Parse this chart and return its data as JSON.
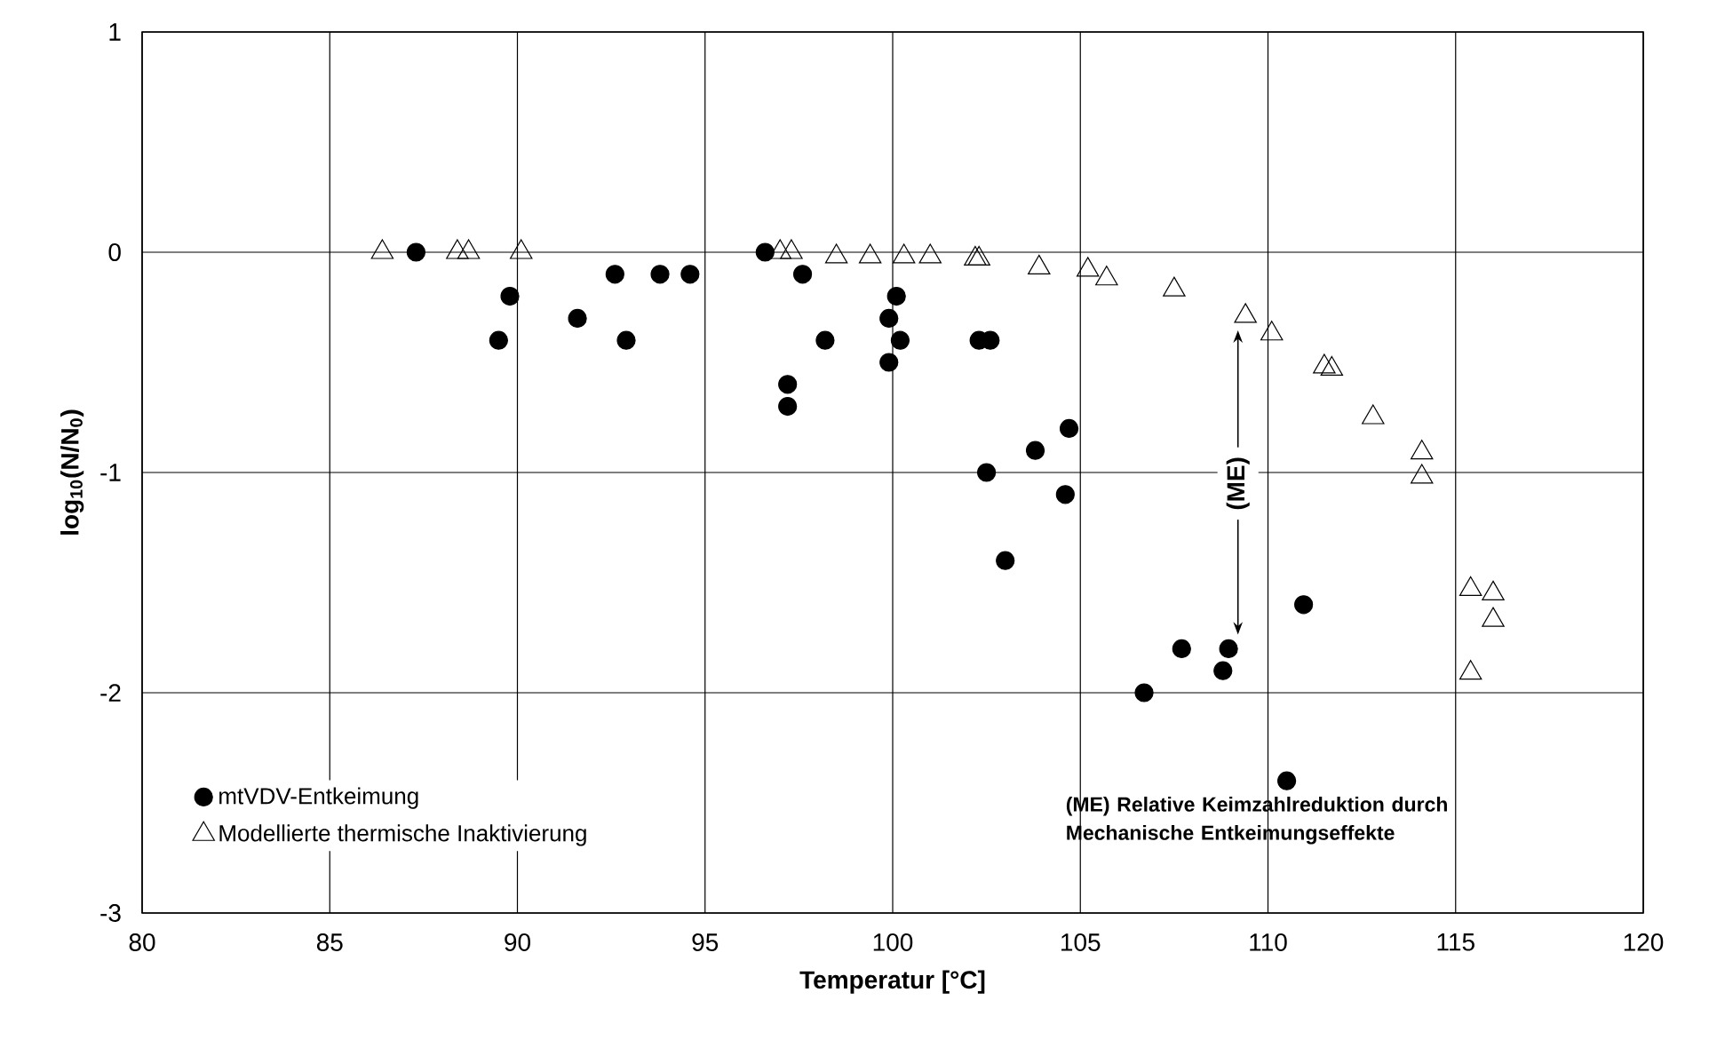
{
  "chart_data": {
    "type": "scatter",
    "xlabel": "Temperatur [°C]",
    "ylabel": "log$_{10}$(N/N$_{0}$)",
    "xlim": [
      80,
      120
    ],
    "ylim": [
      -3,
      1
    ],
    "xticks": [
      80,
      85,
      90,
      95,
      100,
      105,
      110,
      115,
      120
    ],
    "yticks": [
      -3,
      -2,
      -1,
      0,
      1
    ],
    "grid": true,
    "legend": "bottom left",
    "series": [
      {
        "name": "mtVDV-Entkeimung",
        "color": "#000000",
        "marker": "circle",
        "x": [
          87.3,
          89.5,
          89.8,
          91.6,
          92.6,
          92.9,
          93.8,
          94.6,
          96.6,
          97.2,
          97.2,
          97.6,
          98.2,
          99.9,
          99.9,
          100.1,
          100.2,
          102.3,
          102.6,
          102.5,
          103.0,
          103.8,
          104.6,
          104.7,
          106.7,
          107.7,
          108.8,
          108.95,
          110.5,
          110.95
        ],
        "values": [
          0,
          -0.4,
          -0.2,
          -0.3,
          -0.1,
          -0.4,
          -0.1,
          -0.1,
          0,
          -0.6,
          -0.7,
          -0.1,
          -0.4,
          -0.3,
          -0.5,
          -0.2,
          -0.4,
          -0.4,
          -0.4,
          -1.0,
          -1.4,
          -0.9,
          -1.1,
          -0.8,
          -2.0,
          -1.8,
          -1.9,
          -1.8,
          -2.4,
          -1.6
        ]
      },
      {
        "name": "Modellierte thermische Inaktivierung",
        "color": "#000000",
        "marker": "triangle",
        "x": [
          86.4,
          88.4,
          88.7,
          90.1,
          97.0,
          97.3,
          98.5,
          99.4,
          100.3,
          101.0,
          102.2,
          102.3,
          103.9,
          105.2,
          105.7,
          107.5,
          109.4,
          110.1,
          111.5,
          111.7,
          112.8,
          114.1,
          114.1,
          115.4,
          116.0,
          116.0,
          115.4
        ],
        "values": [
          0,
          0,
          0,
          0,
          0,
          0,
          -0.02,
          -0.02,
          -0.02,
          -0.02,
          -0.03,
          -0.03,
          -0.07,
          -0.08,
          -0.12,
          -0.17,
          -0.29,
          -0.37,
          -0.52,
          -0.53,
          -0.75,
          -0.91,
          -1.02,
          -1.53,
          -1.55,
          -1.67,
          -1.91
        ]
      }
    ],
    "annotations": [
      {
        "text": "(ME)",
        "x": 109.2,
        "y": -1.05
      },
      "(ME) Relative Keimzahlreduktion durch Mechanische Entkeimungseffekte"
    ]
  }
}
